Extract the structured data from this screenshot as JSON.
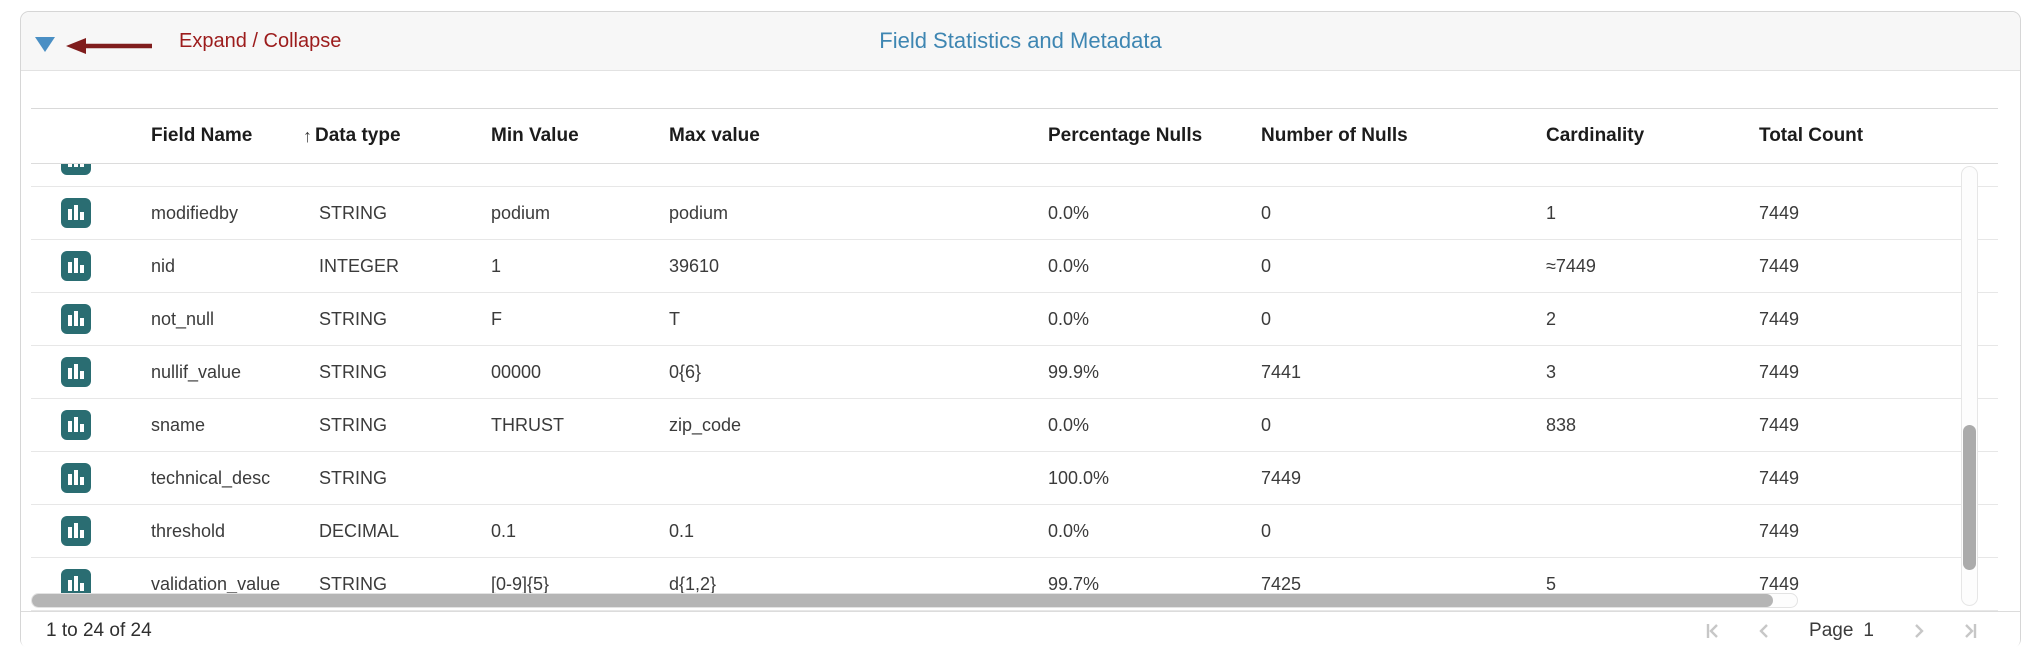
{
  "header": {
    "expand_collapse_label": "Expand / Collapse",
    "title": "Field Statistics and Metadata"
  },
  "table": {
    "columns": [
      {
        "label": "Field Name",
        "sorted": null
      },
      {
        "label": "Data type",
        "sorted": "asc"
      },
      {
        "label": "Min Value",
        "sorted": null
      },
      {
        "label": "Max value",
        "sorted": null
      },
      {
        "label": "Percentage Nulls",
        "sorted": null
      },
      {
        "label": "Number of Nulls",
        "sorted": null
      },
      {
        "label": "Cardinality",
        "sorted": null
      },
      {
        "label": "Total Count",
        "sorted": null
      }
    ],
    "rows": [
      {
        "field_name": "modifiedby",
        "data_type": "STRING",
        "min_value": "podium",
        "max_value": "podium",
        "percentage_nulls": "0.0%",
        "number_of_nulls": "0",
        "cardinality": "1",
        "total_count": "7449"
      },
      {
        "field_name": "nid",
        "data_type": "INTEGER",
        "min_value": "1",
        "max_value": "39610",
        "percentage_nulls": "0.0%",
        "number_of_nulls": "0",
        "cardinality": "≈7449",
        "total_count": "7449"
      },
      {
        "field_name": "not_null",
        "data_type": "STRING",
        "min_value": "F",
        "max_value": "T",
        "percentage_nulls": "0.0%",
        "number_of_nulls": "0",
        "cardinality": "2",
        "total_count": "7449"
      },
      {
        "field_name": "nullif_value",
        "data_type": "STRING",
        "min_value": "00000",
        "max_value": "0{6}",
        "percentage_nulls": "99.9%",
        "number_of_nulls": "7441",
        "cardinality": "3",
        "total_count": "7449"
      },
      {
        "field_name": "sname",
        "data_type": "STRING",
        "min_value": "THRUST",
        "max_value": "zip_code",
        "percentage_nulls": "0.0%",
        "number_of_nulls": "0",
        "cardinality": "838",
        "total_count": "7449"
      },
      {
        "field_name": "technical_desc",
        "data_type": "STRING",
        "min_value": "",
        "max_value": "",
        "percentage_nulls": "100.0%",
        "number_of_nulls": "7449",
        "cardinality": "",
        "total_count": "7449"
      },
      {
        "field_name": "threshold",
        "data_type": "DECIMAL",
        "min_value": "0.1",
        "max_value": "0.1",
        "percentage_nulls": "0.0%",
        "number_of_nulls": "0",
        "cardinality": "",
        "total_count": "7449"
      },
      {
        "field_name": "validation_value",
        "data_type": "STRING",
        "min_value": "[0-9]{5}",
        "max_value": "d{1,2}",
        "percentage_nulls": "99.7%",
        "number_of_nulls": "7425",
        "cardinality": "5",
        "total_count": "7449"
      }
    ],
    "row_icon": "bar-chart-icon"
  },
  "footer": {
    "range_label": "1 to 24 of 24",
    "page_label": "Page",
    "page_number": "1"
  },
  "colors": {
    "title_blue": "#3e86b2",
    "annotation_maroon": "#9c1c1c",
    "expander_blue": "#4a8fc4",
    "row_icon_teal": "#2a6d72",
    "scrollbar_gray": "#b5b5b5",
    "pager_icon_gray": "#c7c7c7"
  }
}
